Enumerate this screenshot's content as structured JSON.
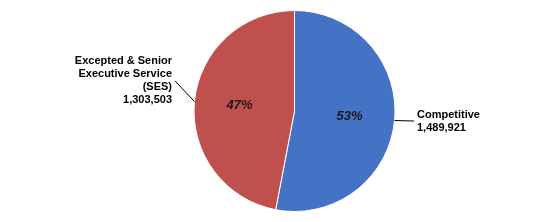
{
  "chart_data": {
    "type": "pie",
    "categories": [
      "Competitive",
      "Excepted & Senior\nExecutive Service\n(SES)"
    ],
    "values": [
      53,
      47
    ],
    "value_labels": [
      "53%",
      "47%"
    ],
    "counts": [
      {
        "value": 1489921,
        "label": "1,489,921"
      },
      {
        "value": 1303503,
        "label": "1,303,503"
      }
    ],
    "colors": [
      "#4472C4",
      "#C0504D"
    ],
    "data_labels": true,
    "legend": false
  }
}
